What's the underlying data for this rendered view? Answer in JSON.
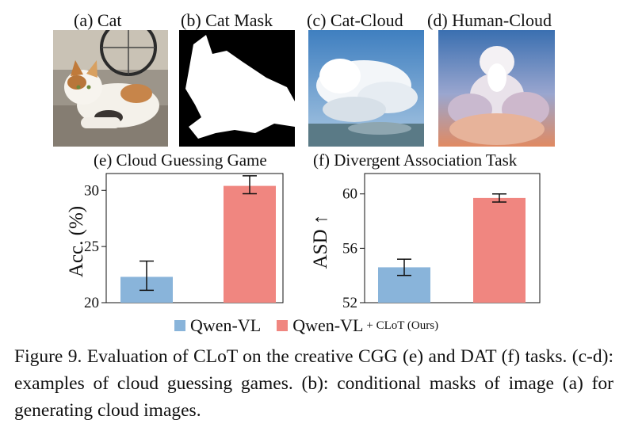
{
  "panels": [
    {
      "label": "(a) Cat"
    },
    {
      "label": "(b) Cat Mask"
    },
    {
      "label": "(c) Cat-Cloud"
    },
    {
      "label": "(d) Human-Cloud"
    }
  ],
  "chart_data": [
    {
      "type": "bar",
      "title": "(e) Cloud Guessing Game",
      "ylabel": "Acc. (%)",
      "xlabel": "",
      "ylim": [
        20,
        31.5
      ],
      "yticks": [
        20,
        25,
        30
      ],
      "series": [
        {
          "name": "Qwen-VL",
          "value": 22.3,
          "err_low": 21.1,
          "err_high": 23.7,
          "color": "#89b4da"
        },
        {
          "name": "Qwen-VL + CLoT (Ours)",
          "value": 30.4,
          "err_low": 29.7,
          "err_high": 31.3,
          "color": "#f08680"
        }
      ]
    },
    {
      "type": "bar",
      "title": "(f) Divergent Association Task",
      "ylabel": "ASD ↑",
      "xlabel": "",
      "ylim": [
        52,
        61.5
      ],
      "yticks": [
        52,
        56,
        60
      ],
      "series": [
        {
          "name": "Qwen-VL",
          "value": 54.6,
          "err_low": 54.0,
          "err_high": 55.2,
          "color": "#89b4da"
        },
        {
          "name": "Qwen-VL + CLoT (Ours)",
          "value": 59.7,
          "err_low": 59.4,
          "err_high": 60.0,
          "color": "#f08680"
        }
      ]
    }
  ],
  "legend": {
    "item1": "Qwen-VL",
    "item2": "Qwen-VL",
    "item2_note": "+ CLoT (Ours)"
  },
  "caption": "Figure 9. Evaluation of CLoT on the creative CGG (e) and DAT (f) tasks. (c-d): examples of cloud guessing games. (b): conditional masks of image (a) for generating cloud images."
}
